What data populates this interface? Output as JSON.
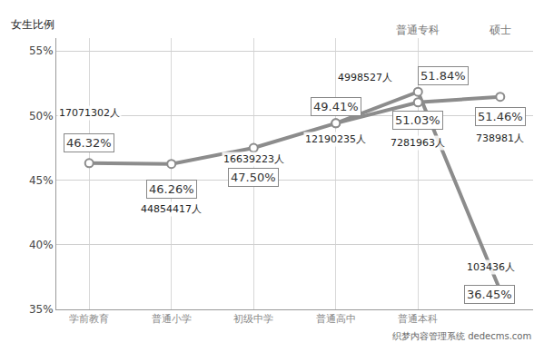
{
  "chart_data": {
    "type": "line",
    "y_label": "女生比例",
    "categories": [
      "学前教育",
      "普通小学",
      "初级中学",
      "普通高中",
      "普通本科",
      null
    ],
    "top_labels": [
      null,
      null,
      null,
      null,
      "普通专科",
      "硕士"
    ],
    "series": [
      {
        "color": "#8c8c8c",
        "marker": "circle",
        "values": [
          46.32,
          46.26,
          47.5,
          49.41,
          51.84,
          36.45
        ],
        "value_labels": [
          "46.32%",
          "46.26%",
          "47.50%",
          "49.41%",
          "51.84%",
          "36.45%"
        ],
        "count_labels": [
          "17071302人",
          "44854417人",
          "16639223人",
          "12190235人",
          "4998527人",
          "103436人"
        ]
      },
      {
        "color": "#8c8c8c",
        "marker": "circle",
        "values": [
          null,
          null,
          null,
          49.41,
          51.03,
          51.46
        ],
        "value_labels": [
          null,
          null,
          null,
          null,
          "51.03%",
          "51.46%"
        ],
        "count_labels": [
          null,
          null,
          null,
          null,
          "7281963人",
          "738981人"
        ]
      }
    ],
    "ylim": [
      35,
      56
    ],
    "yticks": [
      {
        "value": 35,
        "label": "35%"
      },
      {
        "value": 40,
        "label": "40%"
      },
      {
        "value": 45,
        "label": "45%"
      },
      {
        "value": 50,
        "label": "50%"
      },
      {
        "value": 55,
        "label": "55%"
      }
    ],
    "grid": true,
    "data_labels": true,
    "watermark": "织梦内容管理系统 dedecms.com"
  }
}
